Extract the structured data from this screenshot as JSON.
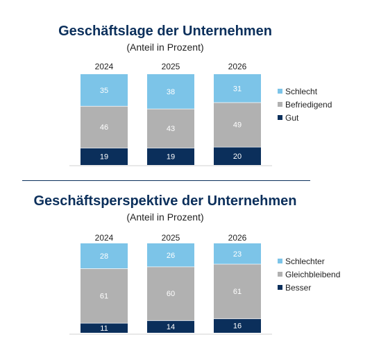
{
  "colors": {
    "dark_blue": "#0b2f5b",
    "gray": "#b1b1b1",
    "light_blue": "#7cc4e8",
    "title": "#0b2f5b"
  },
  "chart_data": [
    {
      "type": "bar",
      "stacked": true,
      "title": "Geschäftslage der Unternehmen",
      "subtitle": "(Anteil in Prozent)",
      "categories": [
        "2024",
        "2025",
        "2026"
      ],
      "series": [
        {
          "name": "Gut",
          "values": [
            19,
            19,
            20
          ],
          "color": "#0b2f5b",
          "label_color": "#ffffff"
        },
        {
          "name": "Befriedigend",
          "values": [
            46,
            43,
            49
          ],
          "color": "#b1b1b1",
          "label_color": "#ffffff"
        },
        {
          "name": "Schlecht",
          "values": [
            35,
            38,
            31
          ],
          "color": "#7cc4e8",
          "label_color": "#ffffff"
        }
      ],
      "legend_order": [
        "Schlecht",
        "Befriedigend",
        "Gut"
      ],
      "legend_position": "right",
      "ylim": [
        0,
        100
      ],
      "grid": false
    },
    {
      "type": "bar",
      "stacked": true,
      "title": "Geschäftsperspektive der Unternehmen",
      "subtitle": "(Anteil in Prozent)",
      "categories": [
        "2024",
        "2025",
        "2026"
      ],
      "series": [
        {
          "name": "Besser",
          "values": [
            11,
            14,
            16
          ],
          "color": "#0b2f5b",
          "label_color": "#ffffff"
        },
        {
          "name": "Gleichbleibend",
          "values": [
            61,
            60,
            61
          ],
          "color": "#b1b1b1",
          "label_color": "#ffffff"
        },
        {
          "name": "Schlechter",
          "values": [
            28,
            26,
            23
          ],
          "color": "#7cc4e8",
          "label_color": "#ffffff"
        }
      ],
      "legend_order": [
        "Schlechter",
        "Gleichbleibend",
        "Besser"
      ],
      "legend_position": "right",
      "ylim": [
        0,
        100
      ],
      "grid": false
    }
  ]
}
